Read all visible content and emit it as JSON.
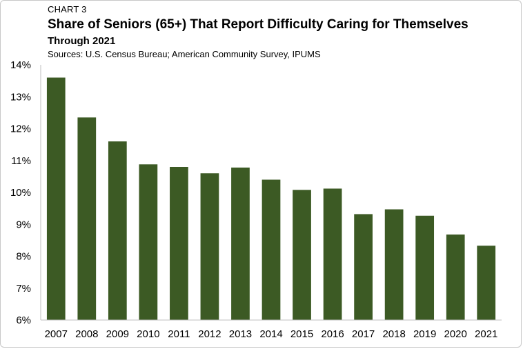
{
  "chart_label": "CHART 3",
  "title": "Share of Seniors (65+) That Report Difficulty Caring for Themselves",
  "subtitle": "Through 2021",
  "sources": "Sources: U.S. Census Bureau; American Community Survey, IPUMS",
  "chart_data": {
    "type": "bar",
    "title": "Share of Seniors (65+) That Report Difficulty Caring for Themselves",
    "subtitle": "Through 2021",
    "categories": [
      "2007",
      "2008",
      "2009",
      "2010",
      "2011",
      "2012",
      "2013",
      "2014",
      "2015",
      "2016",
      "2017",
      "2018",
      "2019",
      "2020",
      "2021"
    ],
    "values": [
      13.6,
      12.35,
      11.6,
      10.88,
      10.8,
      10.6,
      10.78,
      10.4,
      10.08,
      10.12,
      9.32,
      9.47,
      9.27,
      8.68,
      8.33
    ],
    "ylim": [
      6,
      14
    ],
    "yticks": [
      6,
      7,
      8,
      9,
      10,
      11,
      12,
      13,
      14
    ],
    "ytick_labels": [
      "6%",
      "7%",
      "8%",
      "9%",
      "10%",
      "11%",
      "12%",
      "13%",
      "14%"
    ],
    "xlabel": "",
    "ylabel": "",
    "grid": false,
    "legend": "none",
    "bar_color": "#3c5a24",
    "axis_color": "#bfbfbf"
  }
}
